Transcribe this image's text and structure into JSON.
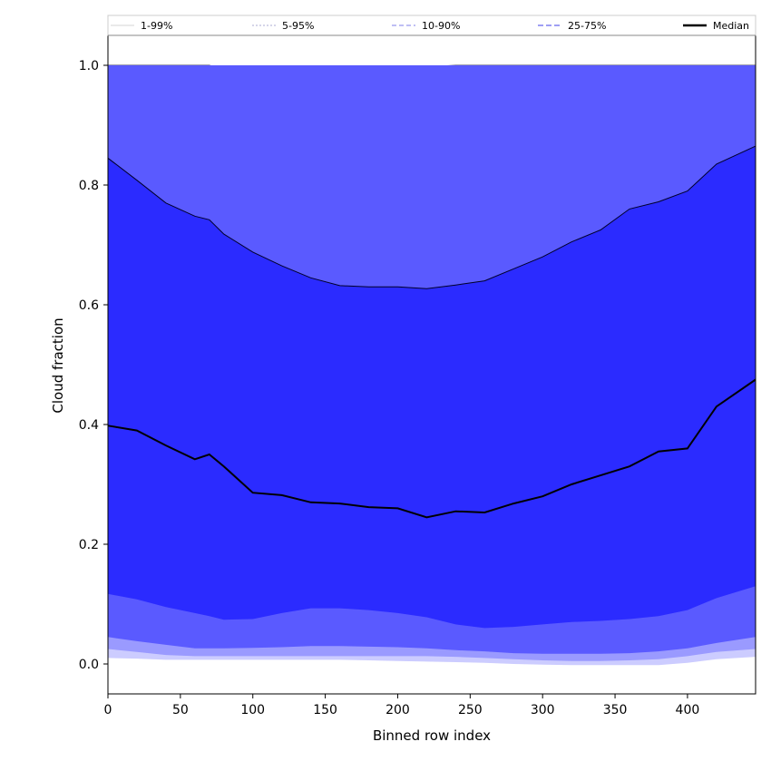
{
  "chart_data": {
    "type": "area",
    "xlabel": "Binned row index",
    "ylabel": "Cloud fraction",
    "xlim": [
      0,
      447
    ],
    "ylim": [
      -0.05,
      1.05
    ],
    "x_ticks": [
      0,
      50,
      100,
      150,
      200,
      250,
      300,
      350,
      400
    ],
    "y_ticks": [
      0.0,
      0.2,
      0.4,
      0.6,
      0.8,
      1.0
    ],
    "x_tick_labels": [
      "0",
      "50",
      "100",
      "150",
      "200",
      "250",
      "300",
      "350",
      "400"
    ],
    "y_tick_labels": [
      "0.0",
      "0.2",
      "0.4",
      "0.6",
      "0.8",
      "1.0"
    ],
    "grid": false,
    "legend_position": "top",
    "colors": {
      "band_1_99": "#ccccff",
      "band_5_95": "#9a9aff",
      "band_10_90": "#5a5aff",
      "band_25_75": "#2b2bff",
      "median": "#000000"
    },
    "legend": [
      {
        "label": "1-99%",
        "key": "p1_99",
        "color": "#dddddd",
        "dash": "none"
      },
      {
        "label": "5-95%",
        "key": "p5_95",
        "color": "#bcbcdc",
        "dash": "2,2"
      },
      {
        "label": "10-90%",
        "key": "p10_90",
        "color": "#9999ee",
        "dash": "5,3"
      },
      {
        "label": "25-75%",
        "key": "p25_75",
        "color": "#6666ee",
        "dash": "6,3"
      },
      {
        "label": "Median",
        "key": "median",
        "color": "#000000",
        "dash": "none"
      }
    ],
    "x": [
      0,
      20,
      40,
      60,
      70,
      80,
      100,
      120,
      140,
      160,
      180,
      200,
      220,
      240,
      260,
      280,
      300,
      320,
      340,
      360,
      380,
      400,
      420,
      447
    ],
    "series": [
      {
        "name": "1-99%",
        "lower": [
          0.01,
          0.009,
          0.007,
          0.007,
          0.007,
          0.007,
          0.007,
          0.007,
          0.007,
          0.007,
          0.006,
          0.005,
          0.004,
          0.003,
          0.002,
          0.0,
          -0.001,
          -0.002,
          -0.002,
          -0.002,
          -0.002,
          0.002,
          0.008,
          0.012
        ],
        "upper": [
          1.0,
          1.0,
          1.0,
          1.0,
          1.0,
          1.0,
          1.0,
          1.0,
          1.0,
          1.0,
          1.0,
          1.0,
          1.0,
          1.0,
          1.0,
          1.0,
          1.0,
          1.0,
          1.0,
          1.0,
          1.0,
          1.0,
          1.0,
          1.0
        ]
      },
      {
        "name": "5-95%",
        "lower": [
          0.025,
          0.02,
          0.015,
          0.013,
          0.013,
          0.013,
          0.013,
          0.013,
          0.013,
          0.013,
          0.013,
          0.013,
          0.013,
          0.012,
          0.01,
          0.008,
          0.006,
          0.005,
          0.005,
          0.006,
          0.008,
          0.013,
          0.02,
          0.025
        ],
        "upper": [
          1.0,
          1.0,
          1.0,
          1.0,
          1.0,
          0.995,
          0.985,
          0.968,
          0.955,
          0.962,
          0.97,
          0.982,
          0.998,
          1.0,
          1.0,
          1.0,
          1.0,
          1.0,
          1.0,
          1.0,
          1.0,
          1.0,
          1.0,
          1.0
        ]
      },
      {
        "name": "10-90%",
        "lower": [
          0.045,
          0.038,
          0.032,
          0.026,
          0.026,
          0.026,
          0.027,
          0.028,
          0.03,
          0.03,
          0.029,
          0.028,
          0.026,
          0.023,
          0.021,
          0.018,
          0.017,
          0.017,
          0.017,
          0.018,
          0.021,
          0.026,
          0.035,
          0.045
        ],
        "upper": [
          1.0,
          1.0,
          1.0,
          1.0,
          1.0,
          1.0,
          1.0,
          1.0,
          1.0,
          1.0,
          1.0,
          1.0,
          1.0,
          1.0,
          1.0,
          1.0,
          1.0,
          1.0,
          1.0,
          1.0,
          1.0,
          1.0,
          1.0,
          1.0
        ]
      },
      {
        "name": "25-75%",
        "lower": [
          0.117,
          0.108,
          0.095,
          0.085,
          0.08,
          0.074,
          0.075,
          0.085,
          0.093,
          0.093,
          0.09,
          0.085,
          0.078,
          0.066,
          0.06,
          0.062,
          0.066,
          0.07,
          0.072,
          0.075,
          0.08,
          0.09,
          0.11,
          0.13
        ],
        "upper": [
          0.845,
          0.808,
          0.77,
          0.748,
          0.742,
          0.718,
          0.688,
          0.665,
          0.645,
          0.632,
          0.63,
          0.63,
          0.627,
          0.633,
          0.64,
          0.66,
          0.68,
          0.705,
          0.725,
          0.76,
          0.772,
          0.79,
          0.835,
          0.865
        ]
      },
      {
        "name": "Median",
        "values": [
          0.398,
          0.39,
          0.365,
          0.342,
          0.35,
          0.33,
          0.286,
          0.282,
          0.27,
          0.268,
          0.262,
          0.26,
          0.245,
          0.255,
          0.253,
          0.268,
          0.28,
          0.3,
          0.315,
          0.33,
          0.355,
          0.36,
          0.43,
          0.475
        ]
      }
    ]
  }
}
